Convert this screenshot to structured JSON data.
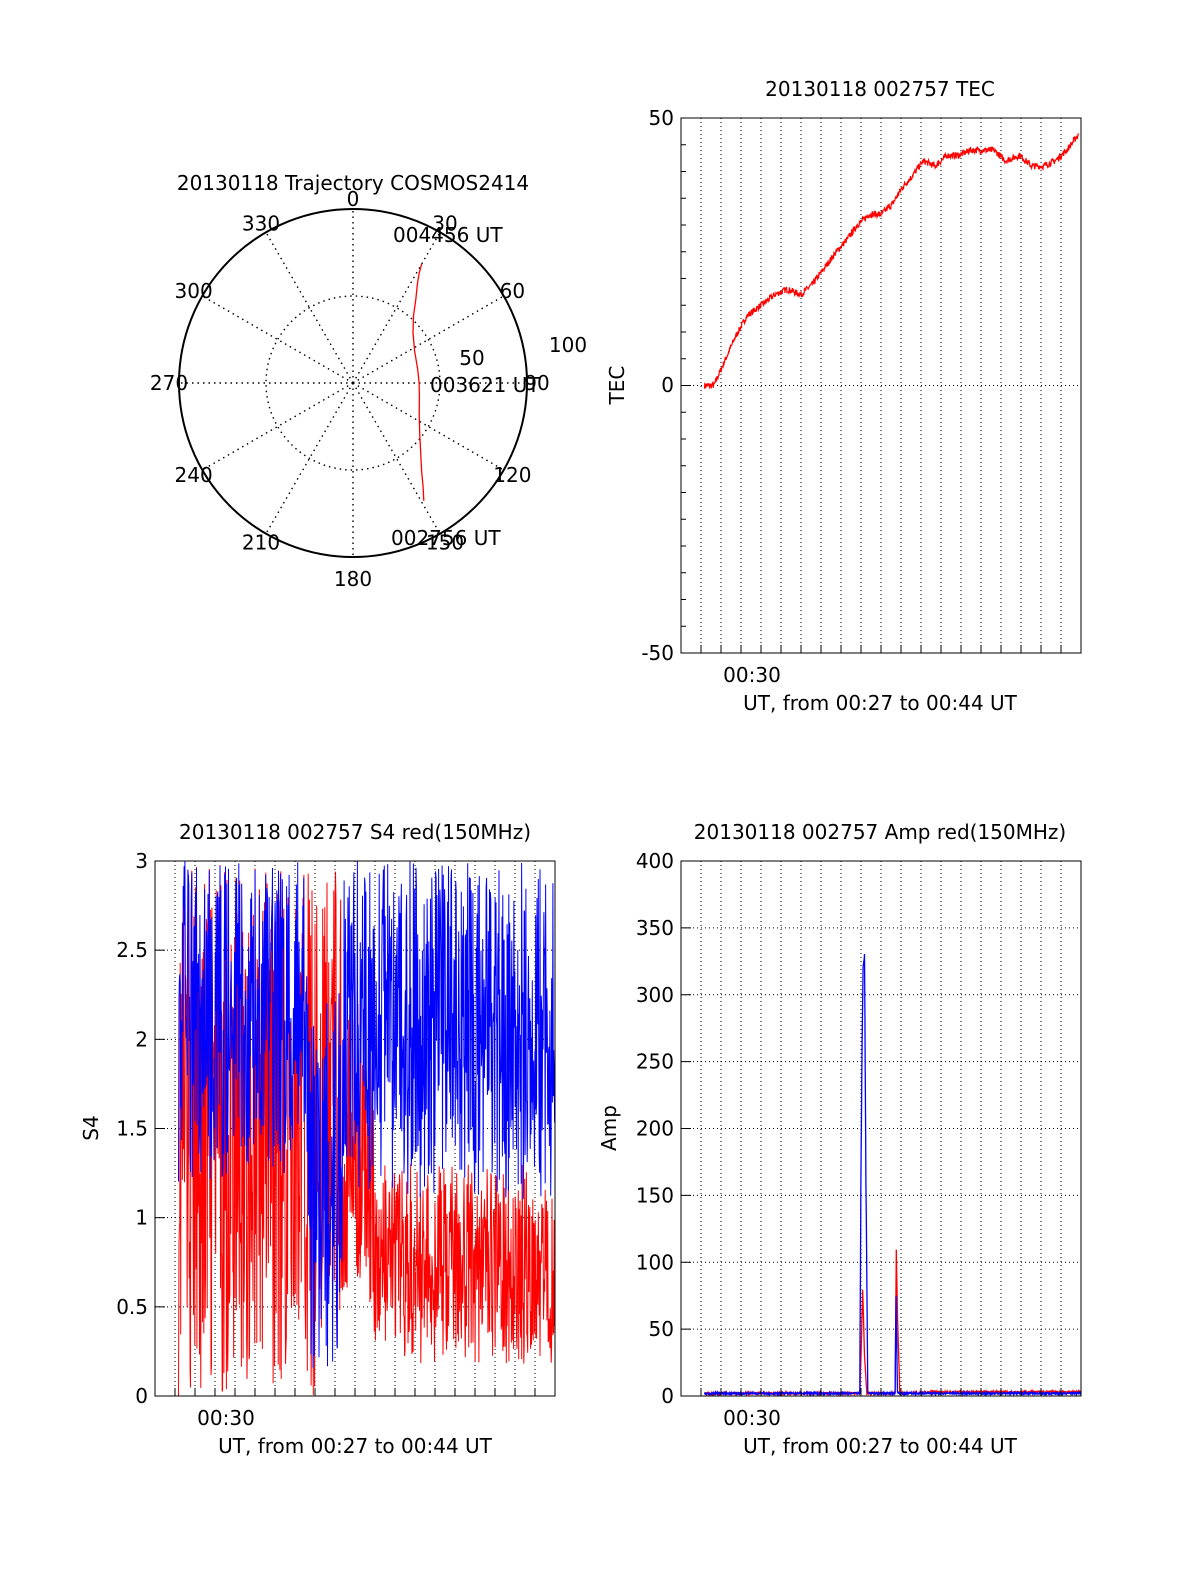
{
  "colors": {
    "red": "#ff0000",
    "blue": "#0000ff",
    "axis": "#000000"
  },
  "chart_data": [
    {
      "id": "trajectory",
      "type": "polar",
      "title": "20130118 Trajectory COSMOS2414",
      "azimuth_labels": [
        "0",
        "30",
        "60",
        "90",
        "120",
        "150",
        "180",
        "210",
        "240",
        "270",
        "300",
        "330"
      ],
      "elevation_ring_labels": [
        "50",
        "100"
      ],
      "radial_range": [
        0,
        100
      ],
      "grid": true,
      "series": [
        {
          "color": "red",
          "points_az_r": [
            [
              30,
              79
            ],
            [
              31,
              74
            ],
            [
              33,
              68
            ],
            [
              37,
              60
            ],
            [
              42,
              52
            ],
            [
              50,
              45
            ],
            [
              62,
              40
            ],
            [
              78,
              38
            ],
            [
              90,
              38
            ],
            [
              102,
              39
            ],
            [
              115,
              42
            ],
            [
              127,
              48
            ],
            [
              136,
              56
            ],
            [
              142,
              64
            ],
            [
              146,
              72
            ],
            [
              149,
              79
            ]
          ]
        }
      ],
      "annotations": [
        {
          "text": "004456 UT",
          "az": 30,
          "r": 79
        },
        {
          "text": "003621 UT",
          "az": 90,
          "r": 38
        },
        {
          "text": "002756 UT",
          "az": 149,
          "r": 79
        }
      ]
    },
    {
      "id": "tec",
      "type": "line",
      "title": "20130118 002757 TEC",
      "xlabel": "UT, from 00:27 to 00:44 UT",
      "ylabel": "TEC",
      "x_tick_label": "00:30",
      "x_tick_minute": 30,
      "xlim_minutes": [
        27,
        44
      ],
      "ylim": [
        -50,
        50
      ],
      "yticks": [
        "-50",
        "0",
        "50"
      ],
      "grid": true,
      "series": [
        {
          "color": "red",
          "x_minutes": [
            28.0,
            28.4,
            28.8,
            29.3,
            29.8,
            30.4,
            31.0,
            31.5,
            32.1,
            32.6,
            33.1,
            33.6,
            34.0,
            34.5,
            35.0,
            35.5,
            36.0,
            36.4,
            36.8,
            37.3,
            37.8,
            38.3,
            38.8,
            39.3,
            39.8,
            40.3,
            40.8,
            41.4,
            41.9,
            42.4,
            42.9,
            43.4,
            43.9
          ],
          "values": [
            0,
            0,
            4,
            9,
            13,
            15,
            17,
            18,
            17,
            19,
            22,
            25,
            27,
            30,
            32,
            32,
            34,
            37,
            39,
            42,
            41,
            43,
            43,
            44,
            44,
            44,
            42,
            43,
            41,
            41,
            42,
            44,
            47
          ]
        }
      ]
    },
    {
      "id": "s4",
      "type": "line",
      "title": "20130118 002757 S4 red(150MHz)",
      "xlabel": "UT, from 00:27 to 00:44 UT",
      "ylabel": "S4",
      "x_tick_label": "00:30",
      "x_tick_minute": 30,
      "xlim_minutes": [
        27,
        44
      ],
      "ylim": [
        0,
        3
      ],
      "yticks": [
        "0",
        "0.5",
        "1",
        "1.5",
        "2",
        "2.5",
        "3"
      ],
      "grid": true,
      "series": [
        {
          "color": "red",
          "segments": [
            {
              "from": 28.0,
              "to": 34.0,
              "low": 0,
              "high": 3
            },
            {
              "from": 34.0,
              "to": 35.0,
              "low": 0.2,
              "high": 3
            },
            {
              "from": 35.0,
              "to": 36.3,
              "low": 0.5,
              "high": 2.2
            },
            {
              "from": 36.3,
              "to": 44.0,
              "low": 0.18,
              "high": 1.3
            }
          ]
        },
        {
          "color": "blue",
          "segments": [
            {
              "from": 28.0,
              "to": 33.5,
              "low": 1.2,
              "high": 3
            },
            {
              "from": 33.5,
              "to": 35.0,
              "low": 0.15,
              "high": 2.3
            },
            {
              "from": 35.0,
              "to": 44.0,
              "low": 1.1,
              "high": 3
            }
          ]
        }
      ]
    },
    {
      "id": "amp",
      "type": "line",
      "title": "20130118 002757 Amp red(150MHz)",
      "xlabel": "UT, from 00:27 to 00:44 UT",
      "ylabel": "Amp",
      "x_tick_label": "00:30",
      "x_tick_minute": 30,
      "xlim_minutes": [
        27,
        44
      ],
      "ylim": [
        0,
        400
      ],
      "yticks": [
        "0",
        "50",
        "100",
        "150",
        "200",
        "250",
        "300",
        "350",
        "400"
      ],
      "grid": true,
      "series": [
        {
          "color": "red",
          "x_minutes": [
            28.0,
            34.6,
            34.66,
            34.72,
            34.8,
            34.9,
            35.0,
            36.1,
            36.15,
            36.2,
            36.3,
            38.0,
            40.0,
            44.0
          ],
          "values": [
            2,
            2,
            35,
            80,
            30,
            2,
            2,
            2,
            110,
            60,
            2,
            3,
            3,
            3
          ]
        },
        {
          "color": "blue",
          "x_minutes": [
            28.0,
            34.6,
            34.64,
            34.7,
            34.74,
            34.8,
            34.86,
            34.94,
            35.0,
            36.1,
            36.14,
            36.2,
            36.3,
            44.0
          ],
          "values": [
            2,
            2,
            150,
            270,
            320,
            330,
            160,
            3,
            2,
            2,
            75,
            3,
            2,
            2
          ]
        }
      ]
    }
  ]
}
